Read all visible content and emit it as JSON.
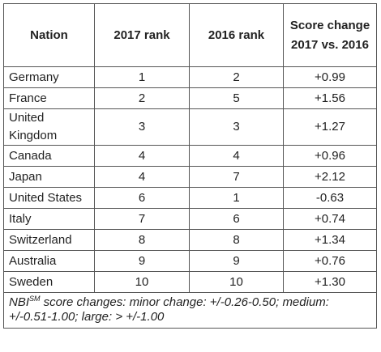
{
  "table": {
    "headers": [
      "Nation",
      "2017 rank",
      "2016 rank",
      "Score change 2017 vs. 2016"
    ],
    "rows": [
      {
        "nation": "Germany",
        "rank2017": "1",
        "rank2016": "2",
        "change": "+0.99"
      },
      {
        "nation": "France",
        "rank2017": "2",
        "rank2016": "5",
        "change": "+1.56"
      },
      {
        "nation": "United Kingdom",
        "rank2017": "3",
        "rank2016": "3",
        "change": "+1.27"
      },
      {
        "nation": "Canada",
        "rank2017": "4",
        "rank2016": "4",
        "change": "+0.96"
      },
      {
        "nation": "Japan",
        "rank2017": "4",
        "rank2016": "7",
        "change": "+2.12"
      },
      {
        "nation": "United States",
        "rank2017": "6",
        "rank2016": "1",
        "change": "-0.63"
      },
      {
        "nation": "Italy",
        "rank2017": "7",
        "rank2016": "6",
        "change": "+0.74"
      },
      {
        "nation": "Switzerland",
        "rank2017": "8",
        "rank2016": "8",
        "change": "+1.34"
      },
      {
        "nation": "Australia",
        "rank2017": "9",
        "rank2016": "9",
        "change": "+0.76"
      },
      {
        "nation": "Sweden",
        "rank2017": "10",
        "rank2016": "10",
        "change": "+1.30"
      }
    ],
    "footnote": {
      "prefix": "NBI",
      "superscript": "SM",
      "text": " score changes: minor change: +/-0.26-0.50; medium: +/-0.51-1.00; large: > +/-1.00"
    }
  }
}
